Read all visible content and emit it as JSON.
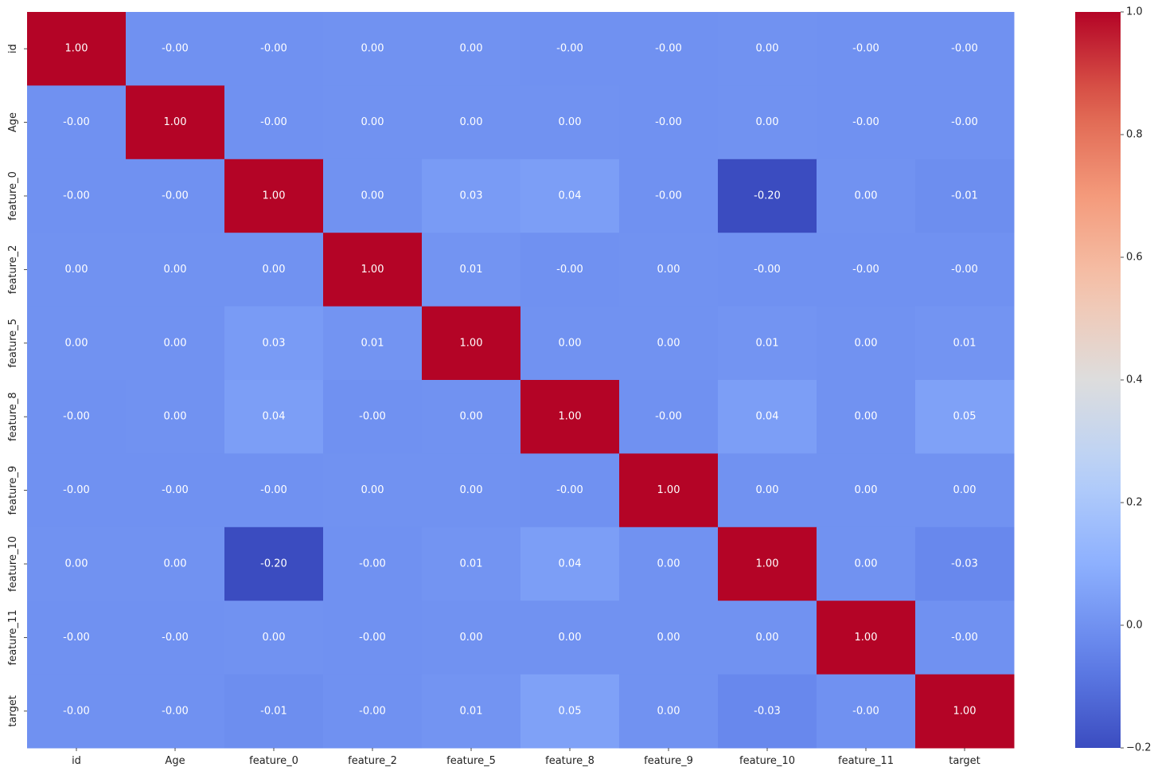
{
  "chart_data": {
    "type": "heatmap",
    "title": "",
    "xlabel": "",
    "ylabel": "",
    "x_labels": [
      "id",
      "Age",
      "feature_0",
      "feature_2",
      "feature_5",
      "feature_8",
      "feature_9",
      "feature_10",
      "feature_11",
      "target"
    ],
    "y_labels": [
      "id",
      "Age",
      "feature_0",
      "feature_2",
      "feature_5",
      "feature_8",
      "feature_9",
      "feature_10",
      "feature_11",
      "target"
    ],
    "values": [
      [
        1.0,
        -0.001,
        -0.001,
        0.001,
        0.001,
        -0.001,
        -0.001,
        0.001,
        -0.001,
        -0.001
      ],
      [
        -0.001,
        1.0,
        -0.001,
        0.001,
        0.001,
        0.001,
        -0.001,
        0.001,
        -0.001,
        -0.001
      ],
      [
        -0.001,
        -0.001,
        1.0,
        0.001,
        0.03,
        0.04,
        -0.001,
        -0.2,
        0.001,
        -0.01
      ],
      [
        0.001,
        0.001,
        0.001,
        1.0,
        0.01,
        -0.001,
        0.001,
        -0.001,
        -0.001,
        -0.001
      ],
      [
        0.001,
        0.001,
        0.03,
        0.01,
        1.0,
        0.001,
        0.001,
        0.01,
        0.001,
        0.01
      ],
      [
        -0.001,
        0.001,
        0.04,
        -0.001,
        0.001,
        1.0,
        -0.001,
        0.04,
        0.001,
        0.05
      ],
      [
        -0.001,
        -0.001,
        -0.001,
        0.001,
        0.001,
        -0.001,
        1.0,
        0.001,
        0.001,
        0.001
      ],
      [
        0.001,
        0.001,
        -0.2,
        -0.001,
        0.01,
        0.04,
        0.001,
        1.0,
        0.001,
        -0.03
      ],
      [
        -0.001,
        -0.001,
        0.001,
        -0.001,
        0.001,
        0.001,
        0.001,
        0.001,
        1.0,
        -0.001
      ],
      [
        -0.001,
        -0.001,
        -0.01,
        -0.001,
        0.01,
        0.05,
        0.001,
        -0.03,
        -0.001,
        1.0
      ]
    ],
    "annotations": [
      [
        "1.00",
        "-0.00",
        "-0.00",
        "0.00",
        "0.00",
        "-0.00",
        "-0.00",
        "0.00",
        "-0.00",
        "-0.00"
      ],
      [
        "-0.00",
        "1.00",
        "-0.00",
        "0.00",
        "0.00",
        "0.00",
        "-0.00",
        "0.00",
        "-0.00",
        "-0.00"
      ],
      [
        "-0.00",
        "-0.00",
        "1.00",
        "0.00",
        "0.03",
        "0.04",
        "-0.00",
        "-0.20",
        "0.00",
        "-0.01"
      ],
      [
        "0.00",
        "0.00",
        "0.00",
        "1.00",
        "0.01",
        "-0.00",
        "0.00",
        "-0.00",
        "-0.00",
        "-0.00"
      ],
      [
        "0.00",
        "0.00",
        "0.03",
        "0.01",
        "1.00",
        "0.00",
        "0.00",
        "0.01",
        "0.00",
        "0.01"
      ],
      [
        "-0.00",
        "0.00",
        "0.04",
        "-0.00",
        "0.00",
        "1.00",
        "-0.00",
        "0.04",
        "0.00",
        "0.05"
      ],
      [
        "-0.00",
        "-0.00",
        "-0.00",
        "0.00",
        "0.00",
        "-0.00",
        "1.00",
        "0.00",
        "0.00",
        "0.00"
      ],
      [
        "0.00",
        "0.00",
        "-0.20",
        "-0.00",
        "0.01",
        "0.04",
        "0.00",
        "1.00",
        "0.00",
        "-0.03"
      ],
      [
        "-0.00",
        "-0.00",
        "0.00",
        "-0.00",
        "0.00",
        "0.00",
        "0.00",
        "0.00",
        "1.00",
        "-0.00"
      ],
      [
        "-0.00",
        "-0.00",
        "-0.01",
        "-0.00",
        "0.01",
        "0.05",
        "0.00",
        "-0.03",
        "-0.00",
        "1.00"
      ]
    ],
    "colormap": "coolwarm",
    "colorbar": {
      "vmin": -0.2,
      "vmax": 1.0,
      "ticks": [
        -0.2,
        0.0,
        0.2,
        0.4,
        0.6,
        0.8,
        1.0
      ],
      "tick_labels": [
        "−0.2",
        "0.0",
        "0.2",
        "0.4",
        "0.6",
        "0.8",
        "1.0"
      ]
    },
    "grid": false,
    "legend": "colorbar-right"
  }
}
